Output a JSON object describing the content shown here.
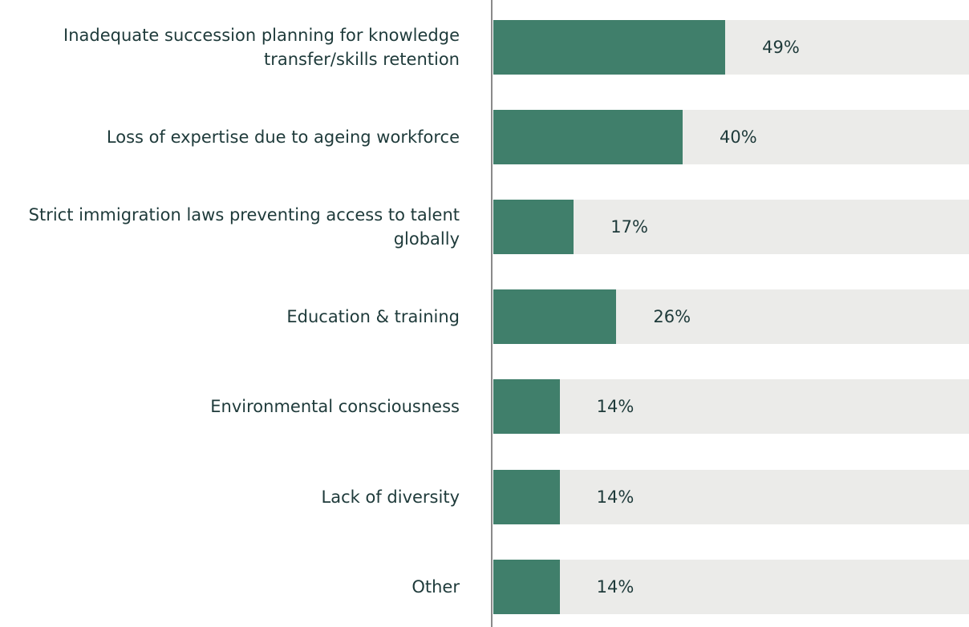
{
  "chart_data": {
    "type": "bar",
    "orientation": "horizontal",
    "categories": [
      "Inadequate succession planning for knowledge transfer/skills retention",
      "Loss of expertise due to ageing workforce",
      "Strict immigration laws preventing access to talent globally",
      "Education & training",
      "Environmental consciousness",
      "Lack of diversity",
      "Other"
    ],
    "values": [
      49,
      40,
      17,
      26,
      14,
      14,
      14
    ],
    "value_labels": [
      "49%",
      "40%",
      "17%",
      "26%",
      "14%",
      "14%",
      "14%"
    ],
    "color": "#407f6b",
    "xlim": [
      0,
      100
    ]
  }
}
